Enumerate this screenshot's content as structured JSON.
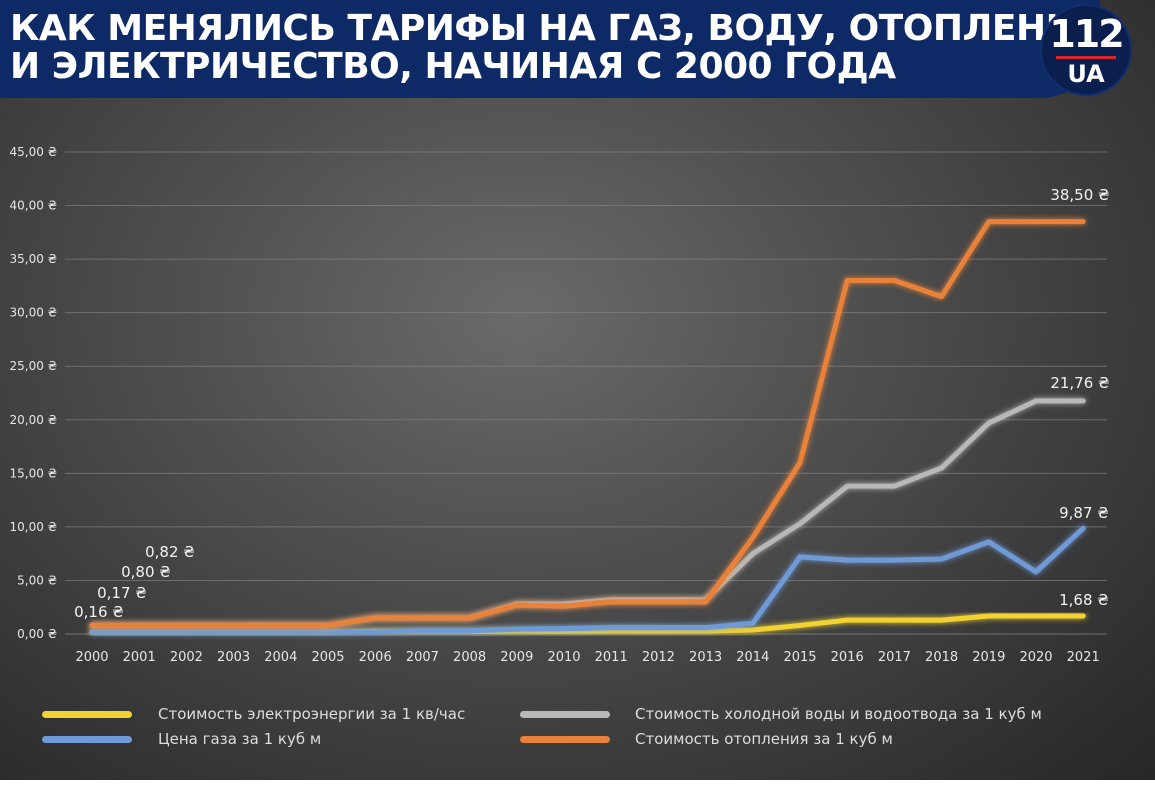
{
  "header": {
    "title_line1": "КАК МЕНЯЛИСЬ ТАРИФЫ НА ГАЗ, ВОДУ, ОТОПЛЕНИЕ",
    "title_line2": "И ЭЛЕКТРИЧЕСТВО, НАЧИНАЯ С 2000 ГОДА",
    "logo_number": "112",
    "logo_text": "UA"
  },
  "colors": {
    "electricity": "#f2d230",
    "water": "#b8b8b8",
    "gas": "#6f9ad6",
    "heating": "#e8823a",
    "header_bg": "#0e2a66"
  },
  "chart_data": {
    "type": "line",
    "x": [
      "2000",
      "2001",
      "2002",
      "2003",
      "2004",
      "2005",
      "2006",
      "2007",
      "2008",
      "2009",
      "2010",
      "2011",
      "2012",
      "2013",
      "2014",
      "2015",
      "2016",
      "2017",
      "2018",
      "2019",
      "2020",
      "2021"
    ],
    "ylim": [
      0,
      45
    ],
    "yticks": [
      "0,00 ₴",
      "5,00 ₴",
      "10,00 ₴",
      "15,00 ₴",
      "20,00 ₴",
      "25,00 ₴",
      "30,00 ₴",
      "35,00 ₴",
      "40,00 ₴",
      "45,00 ₴"
    ],
    "ytick_values": [
      0,
      5,
      10,
      15,
      20,
      25,
      30,
      35,
      40,
      45
    ],
    "grid": true,
    "series": [
      {
        "key": "heating",
        "name": "Стоимость отопления за 1 куб м",
        "values": [
          0.82,
          0.82,
          0.82,
          0.82,
          0.82,
          0.82,
          1.5,
          1.5,
          1.5,
          2.7,
          2.6,
          3.0,
          3.0,
          3.0,
          9.0,
          16.0,
          33.0,
          33.0,
          31.5,
          38.5,
          38.5,
          38.5
        ]
      },
      {
        "key": "water",
        "name": "Стоимость холодной воды и водоотвода за 1 куб м",
        "values": [
          0.8,
          0.8,
          0.8,
          0.8,
          0.8,
          0.8,
          1.5,
          1.5,
          1.5,
          2.8,
          2.8,
          3.2,
          3.2,
          3.2,
          7.5,
          10.3,
          13.8,
          13.8,
          15.5,
          19.7,
          21.76,
          21.76
        ]
      },
      {
        "key": "gas",
        "name": "Цена газа за 1 куб м",
        "values": [
          0.17,
          0.17,
          0.17,
          0.17,
          0.17,
          0.17,
          0.2,
          0.3,
          0.3,
          0.45,
          0.5,
          0.6,
          0.6,
          0.6,
          1.0,
          7.2,
          6.9,
          6.9,
          7.0,
          8.6,
          5.8,
          9.87
        ]
      },
      {
        "key": "electricity",
        "name": "Стоимость электроэнергии за 1 кв/час",
        "values": [
          0.16,
          0.16,
          0.16,
          0.16,
          0.16,
          0.16,
          0.24,
          0.24,
          0.24,
          0.24,
          0.24,
          0.28,
          0.28,
          0.28,
          0.37,
          0.8,
          1.3,
          1.3,
          1.3,
          1.68,
          1.68,
          1.68
        ]
      }
    ],
    "annotations": [
      {
        "key": "heating_start",
        "text": "0,82 ₴",
        "series": "heating",
        "index": 0
      },
      {
        "key": "water_start",
        "text": "0,80 ₴",
        "series": "water",
        "index": 0
      },
      {
        "key": "gas_start",
        "text": "0,17 ₴",
        "series": "gas",
        "index": 0
      },
      {
        "key": "electricity_start",
        "text": "0,16 ₴",
        "series": "electricity",
        "index": 0
      },
      {
        "key": "heating_end",
        "text": "38,50 ₴",
        "series": "heating",
        "index": 21
      },
      {
        "key": "water_end",
        "text": "21,76 ₴",
        "series": "water",
        "index": 21
      },
      {
        "key": "gas_end",
        "text": "9,87 ₴",
        "series": "gas",
        "index": 21
      },
      {
        "key": "electricity_end",
        "text": "1,68 ₴",
        "series": "electricity",
        "index": 21
      }
    ]
  },
  "legend": {
    "electricity": "Стоимость электроэнергии за 1 кв/час",
    "water": "Стоимость холодной воды и водоотвода за 1 куб м",
    "gas": "Цена газа за 1 куб м",
    "heating": "Стоимость отопления за 1 куб м"
  }
}
